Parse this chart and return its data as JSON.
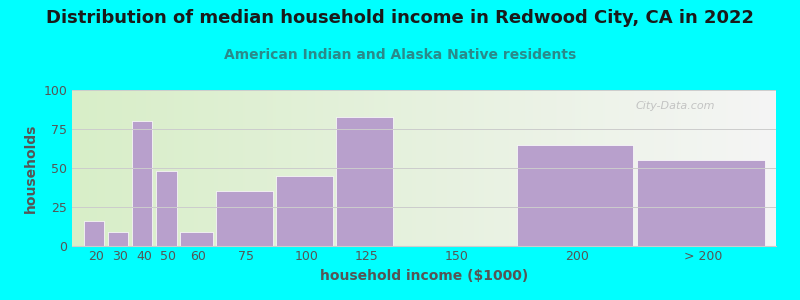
{
  "title": "Distribution of median household income in Redwood City, CA in 2022",
  "subtitle": "American Indian and Alaska Native residents",
  "xlabel": "household income ($1000)",
  "ylabel": "households",
  "background_color": "#00FFFF",
  "bar_color": "#b8a0cc",
  "categories": [
    "20",
    "30",
    "40",
    "50",
    "60",
    "75",
    "100",
    "125",
    "150",
    "200",
    "> 200"
  ],
  "values": [
    16,
    9,
    80,
    48,
    9,
    35,
    45,
    83,
    0,
    65,
    55
  ],
  "bar_positions": [
    20,
    30,
    40,
    50,
    60,
    75,
    100,
    125,
    150,
    200,
    250
  ],
  "bar_widths": [
    10,
    10,
    10,
    10,
    15,
    25,
    25,
    25,
    50,
    50,
    55
  ],
  "xlim_left": 15,
  "xlim_right": 308,
  "ylim": [
    0,
    100
  ],
  "yticks": [
    0,
    25,
    50,
    75,
    100
  ],
  "title_fontsize": 13,
  "subtitle_fontsize": 10,
  "axis_label_fontsize": 10,
  "tick_fontsize": 9,
  "title_color": "#1a1a1a",
  "subtitle_color": "#2a8a8a",
  "axis_label_color": "#555555",
  "tick_color": "#555555",
  "grid_color": "#cccccc",
  "watermark_text": "City-Data.com",
  "grad_left_color": "#d8eec8",
  "grad_right_color": "#f5f5f5"
}
